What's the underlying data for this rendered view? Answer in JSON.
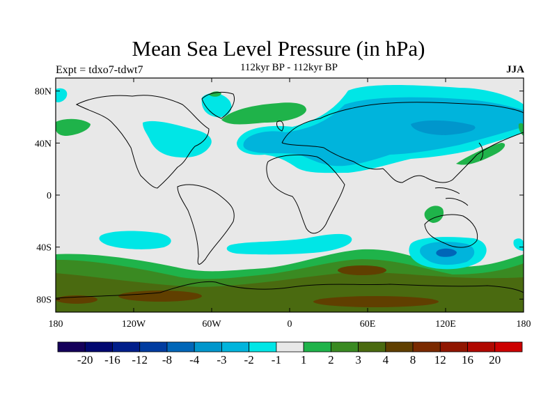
{
  "title": "Mean Sea Level Pressure (in hPa)",
  "experiment": "Expt = tdxo7-tdwt7",
  "period": "112kyr BP - 112kyr BP",
  "season": "JJA",
  "map": {
    "projection": "cylindrical-equidistant",
    "lon_range": [
      -180,
      180
    ],
    "lat_range": [
      -90,
      90
    ],
    "lat_ticks": [
      {
        "lat": 80,
        "label": "80N"
      },
      {
        "lat": 40,
        "label": "40N"
      },
      {
        "lat": 0,
        "label": "0"
      },
      {
        "lat": -40,
        "label": "40S"
      },
      {
        "lat": -80,
        "label": "80S"
      }
    ],
    "lon_ticks": [
      {
        "lon": -180,
        "label": "180"
      },
      {
        "lon": -120,
        "label": "120W"
      },
      {
        "lon": -60,
        "label": "60W"
      },
      {
        "lon": 0,
        "label": "0"
      },
      {
        "lon": 60,
        "label": "60E"
      },
      {
        "lon": 120,
        "label": "120E"
      },
      {
        "lon": 180,
        "label": "180"
      }
    ],
    "background_color": "#e8e8e8",
    "coastline_color": "#000000"
  },
  "colorbar": {
    "colors": [
      "#15005a",
      "#020870",
      "#001e8a",
      "#003ca0",
      "#0066b8",
      "#0096cc",
      "#00b4dc",
      "#00e6e6",
      "#e8e8e8",
      "#1fb34a",
      "#3a8a22",
      "#4a6a10",
      "#603f00",
      "#7a2a00",
      "#901600",
      "#b00800",
      "#cc0000"
    ],
    "labels": [
      "-20",
      "-16",
      "-12",
      "-8",
      "-4",
      "-3",
      "-2",
      "-1",
      "1",
      "2",
      "3",
      "4",
      "8",
      "12",
      "16",
      "20"
    ]
  }
}
